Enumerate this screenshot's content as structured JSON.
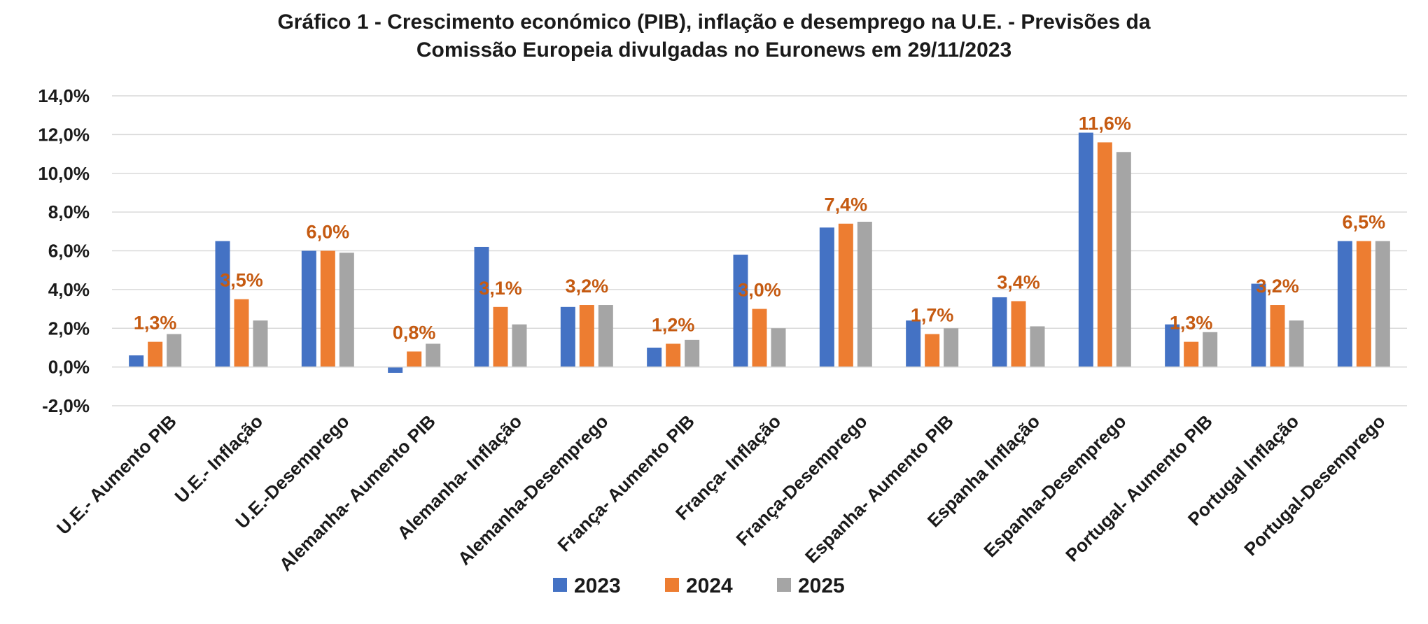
{
  "chart_data": {
    "type": "bar",
    "title": "Gráfico 1 - Crescimento económico (PIB), inflação e desemprego na U.E. - Previsões da Comissão Europeia divulgadas no Euronews em 29/11/2023",
    "title_lines": [
      "Gráfico 1 - Crescimento económico (PIB), inflação e desemprego na U.E. - Previsões da",
      "Comissão Europeia divulgadas no Euronews em 29/11/2023"
    ],
    "xlabel": "",
    "ylabel": "",
    "ylim": [
      -0.02,
      0.14
    ],
    "yticks": [
      -0.02,
      0.0,
      0.02,
      0.04,
      0.06,
      0.08,
      0.1,
      0.12,
      0.14
    ],
    "ytick_labels": [
      "-2,0%",
      "0,0%",
      "2,0%",
      "4,0%",
      "6,0%",
      "8,0%",
      "10,0%",
      "12,0%",
      "14,0%"
    ],
    "grid": true,
    "legend_position": "bottom",
    "categories": [
      "U.E.- Aumento PIB",
      "U.E.- Inflação",
      "U.E.-Desemprego",
      "Alemanha- Aumento PIB",
      "Alemanha- Inflação",
      "Alemanha-Desemprego",
      "França- Aumento PIB",
      "França- Inflação",
      "França-Desemprego",
      "Espanha- Aumento PIB",
      "Espanha Inflação",
      "Espanha-Desemprego",
      "Portugal- Aumento PIB",
      "Portugal Inflação",
      "Portugal-Desemprego"
    ],
    "series": [
      {
        "name": "2023",
        "color": "#4472C4",
        "values": [
          0.006,
          0.065,
          0.06,
          -0.003,
          0.062,
          0.031,
          0.01,
          0.058,
          0.072,
          0.024,
          0.036,
          0.121,
          0.022,
          0.043,
          0.065
        ]
      },
      {
        "name": "2024",
        "color": "#ED7D31",
        "values": [
          0.013,
          0.035,
          0.06,
          0.008,
          0.031,
          0.032,
          0.012,
          0.03,
          0.074,
          0.017,
          0.034,
          0.116,
          0.013,
          0.032,
          0.065
        ]
      },
      {
        "name": "2025",
        "color": "#A5A5A5",
        "values": [
          0.017,
          0.024,
          0.059,
          0.012,
          0.022,
          0.032,
          0.014,
          0.02,
          0.075,
          0.02,
          0.021,
          0.111,
          0.018,
          0.024,
          0.065
        ]
      }
    ],
    "data_labels": {
      "series": "2024",
      "color": "#C55A11",
      "labels": [
        "1,3%",
        "3,5%",
        "6,0%",
        "0,8%",
        "3,1%",
        "3,2%",
        "1,2%",
        "3,0%",
        "7,4%",
        "1,7%",
        "3,4%",
        "11,6%",
        "1,3%",
        "3,2%",
        "6,5%"
      ]
    }
  }
}
